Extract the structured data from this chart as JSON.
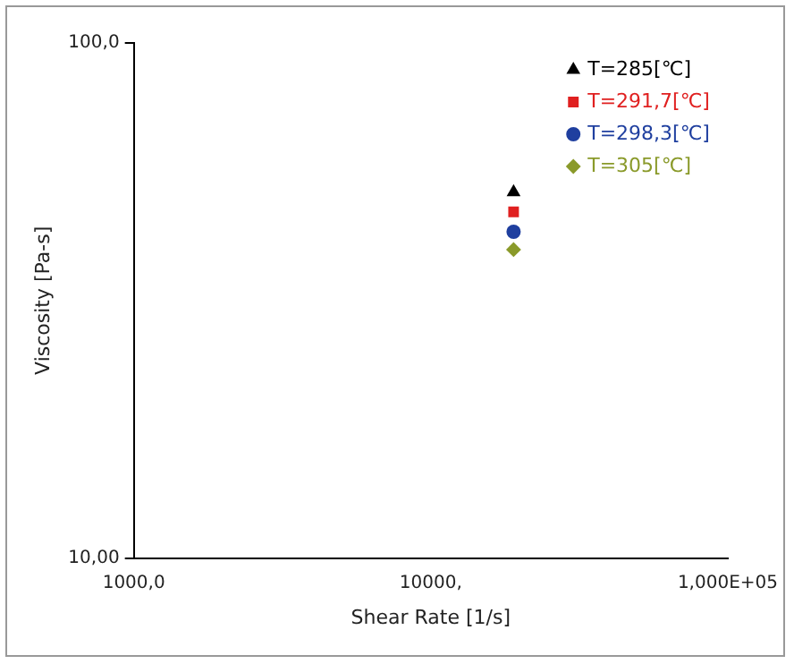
{
  "chart_data": {
    "type": "scatter",
    "xlabel": "Shear Rate [1/s]",
    "ylabel": "Viscosity [Pa-s]",
    "log": "xy",
    "grid": false,
    "legend": "top right",
    "xlim": [
      1000,
      100000
    ],
    "xticks": [
      {
        "value": 1000,
        "label": "1000,0"
      },
      {
        "value": 10000,
        "label": "10000,"
      },
      {
        "value": 100000,
        "label": "1,000E+05"
      }
    ],
    "ylim": [
      10,
      100
    ],
    "yticks": [
      {
        "value": 10,
        "label": "10,00"
      },
      {
        "value": 100,
        "label": "100,0"
      }
    ],
    "x": [
      19000
    ],
    "series": [
      {
        "name": "T=285[℃]",
        "color": "#000000",
        "marker": "triangle",
        "values": [
          51.3
        ]
      },
      {
        "name": "T=291,7[℃]",
        "color": "#e02020",
        "marker": "square",
        "values": [
          47.0
        ]
      },
      {
        "name": "T=298,3[℃]",
        "color": "#1f3f9f",
        "marker": "circle",
        "values": [
          43.0
        ]
      },
      {
        "name": "T=305[℃]",
        "color": "#8a9a2a",
        "marker": "diamond",
        "values": [
          39.7
        ]
      }
    ]
  }
}
